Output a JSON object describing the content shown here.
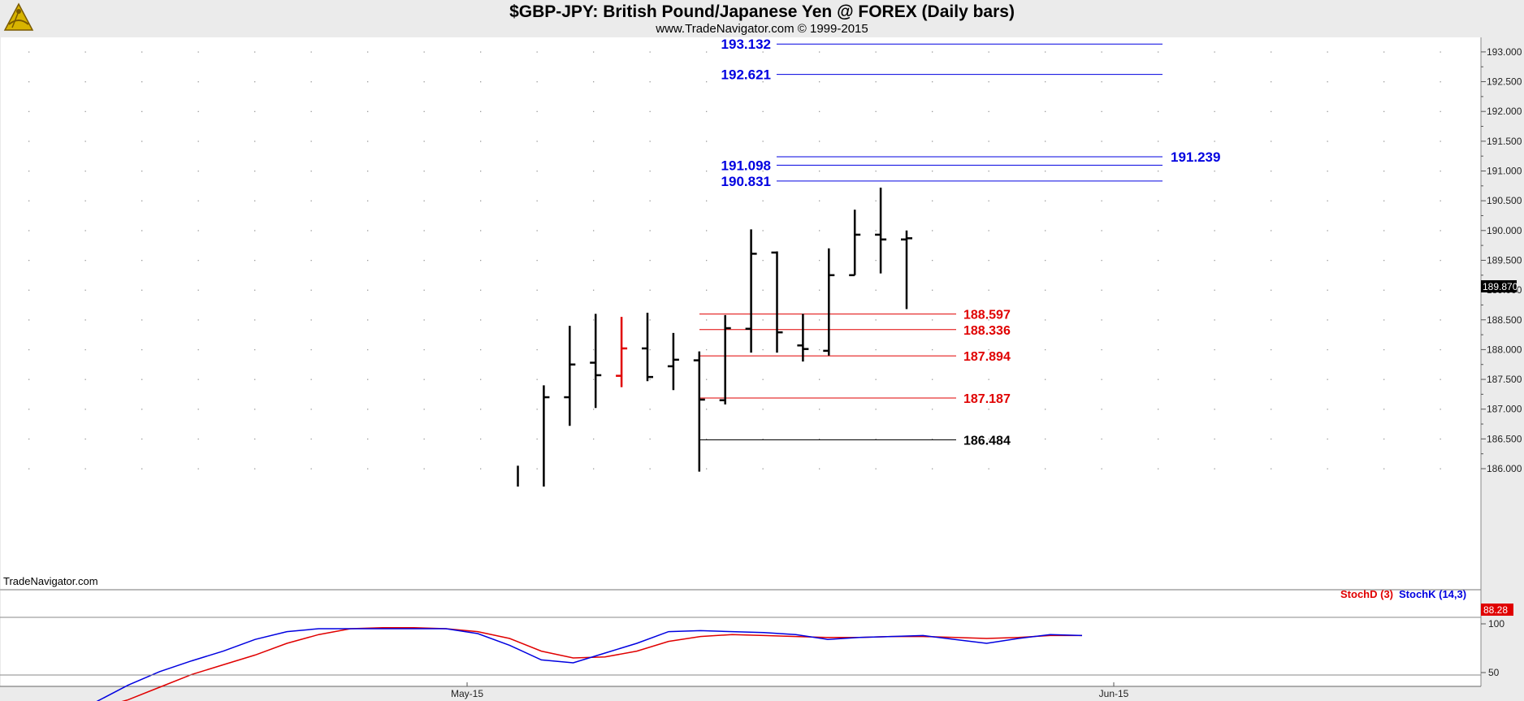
{
  "header": {
    "title": "$GBP-JPY:  British Pound/Japanese Yen @ FOREX  (Daily bars)",
    "subtitle": "www.TradeNavigator.com © 1999-2015"
  },
  "watermark": "TradeNavigator.com",
  "colors": {
    "background": "#ffffff",
    "frame": "#ebebeb",
    "bars": "#000000",
    "highlight_bar": "#e00000",
    "target_lines": "#0000e0",
    "support_lines": "#e00000",
    "stoch_d": "#e00000",
    "stoch_k": "#0000e0"
  },
  "chart_data": [
    {
      "type": "ohlc",
      "title": "$GBP-JPY:  British Pound/Japanese Yen @ FOREX  (Daily bars)",
      "ylim": [
        185.7,
        193.5
      ],
      "y_ticks": [
        "186.000",
        "186.500",
        "187.000",
        "187.500",
        "188.000",
        "188.500",
        "189.000",
        "189.500",
        "190.000",
        "190.500",
        "191.000",
        "191.500",
        "192.000",
        "192.500",
        "193.000"
      ],
      "x_tick_labels": [
        "May-15",
        "Jun-15"
      ],
      "last_price_label": "189.870",
      "bars": [
        {
          "i": 0,
          "open": null,
          "high": 186.05,
          "low": 185.7,
          "close": null,
          "color": "black"
        },
        {
          "i": 1,
          "open": null,
          "high": 187.4,
          "low": 185.7,
          "close": 187.2,
          "color": "black"
        },
        {
          "i": 2,
          "open": 187.2,
          "high": 188.4,
          "low": 186.72,
          "close": 187.75,
          "color": "black"
        },
        {
          "i": 3,
          "open": 187.78,
          "high": 188.6,
          "low": 187.02,
          "close": 187.57,
          "color": "black"
        },
        {
          "i": 4,
          "open": 187.56,
          "high": 188.55,
          "low": 187.37,
          "close": 188.02,
          "color": "red"
        },
        {
          "i": 5,
          "open": 188.02,
          "high": 188.62,
          "low": 187.47,
          "close": 187.54,
          "color": "black"
        },
        {
          "i": 6,
          "open": 187.72,
          "high": 188.28,
          "low": 187.32,
          "close": 187.83,
          "color": "black"
        },
        {
          "i": 7,
          "open": 187.82,
          "high": 187.97,
          "low": 185.95,
          "close": 187.16,
          "color": "black"
        },
        {
          "i": 8,
          "open": 187.15,
          "high": 188.58,
          "low": 187.08,
          "close": 188.36,
          "color": "black"
        },
        {
          "i": 9,
          "open": 188.35,
          "high": 190.02,
          "low": 187.95,
          "close": 189.61,
          "color": "black"
        },
        {
          "i": 10,
          "open": 189.63,
          "high": 189.65,
          "low": 187.95,
          "close": 188.29,
          "color": "black"
        },
        {
          "i": 11,
          "open": 188.07,
          "high": 188.6,
          "low": 187.8,
          "close": 188.01,
          "color": "black"
        },
        {
          "i": 12,
          "open": 187.98,
          "high": 189.7,
          "low": 187.9,
          "close": 189.25,
          "color": "black"
        },
        {
          "i": 13,
          "open": 189.25,
          "high": 190.35,
          "low": 189.25,
          "close": 189.93,
          "color": "black"
        },
        {
          "i": 14,
          "open": 189.93,
          "high": 190.72,
          "low": 189.28,
          "close": 189.85,
          "color": "black"
        },
        {
          "i": 15,
          "open": 189.85,
          "high": 190.0,
          "low": 188.68,
          "close": 189.87,
          "color": "black"
        }
      ],
      "levels": [
        {
          "value": 193.132,
          "label": "193.132",
          "color": "blue",
          "label_side": "left"
        },
        {
          "value": 192.621,
          "label": "192.621",
          "color": "blue",
          "label_side": "left"
        },
        {
          "value": 191.239,
          "label": "191.239",
          "color": "blue",
          "label_side": "right"
        },
        {
          "value": 191.098,
          "label": "191.098",
          "color": "blue",
          "label_side": "left"
        },
        {
          "value": 190.831,
          "label": "190.831",
          "color": "blue",
          "label_side": "left"
        },
        {
          "value": 188.597,
          "label": "188.597",
          "color": "red",
          "label_side": "right"
        },
        {
          "value": 188.336,
          "label": "188.336",
          "color": "red",
          "label_side": "right"
        },
        {
          "value": 187.894,
          "label": "187.894",
          "color": "red",
          "label_side": "right"
        },
        {
          "value": 187.187,
          "label": "187.187",
          "color": "red",
          "label_side": "right"
        },
        {
          "value": 186.484,
          "label": "186.484",
          "color": "black",
          "label_side": "right"
        }
      ]
    },
    {
      "type": "line",
      "ylim": [
        0,
        110
      ],
      "y_ticks": [
        "50",
        "100"
      ],
      "last_value_label": "88.28",
      "series": [
        {
          "name": "StochD (3)",
          "color": "red",
          "values": [
            19,
            13,
            13,
            22,
            35,
            48,
            58,
            68,
            80,
            89,
            95,
            96,
            96,
            95,
            92,
            85,
            72,
            65,
            66,
            72,
            82,
            87,
            89,
            88,
            87,
            86,
            86,
            87,
            87,
            86,
            85,
            86,
            88,
            88
          ]
        },
        {
          "name": "StochK (14,3)",
          "color": "blue",
          "values": [
            4,
            8,
            20,
            37,
            51,
            62,
            72,
            84,
            92,
            95,
            95,
            95,
            95,
            95,
            90,
            78,
            63,
            60,
            70,
            80,
            92,
            93,
            92,
            91,
            89,
            84,
            86,
            87,
            88,
            84,
            80,
            85,
            89,
            88
          ]
        }
      ]
    }
  ]
}
